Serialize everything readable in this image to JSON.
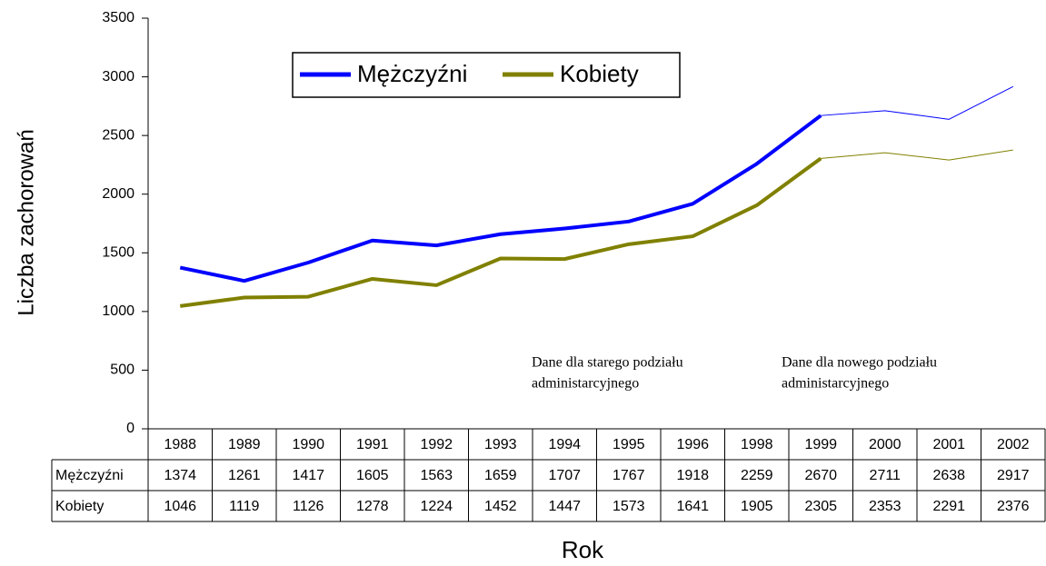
{
  "chart_data": {
    "type": "line",
    "xlabel": "Rok",
    "ylabel": "Liczba zachorowań",
    "categories": [
      "1988",
      "1989",
      "1990",
      "1991",
      "1992",
      "1993",
      "1994",
      "1995",
      "1996",
      "1998",
      "1999",
      "2000",
      "2001",
      "2002"
    ],
    "series": [
      {
        "name": "Mężczyźni",
        "color": "#0000ff",
        "values": [
          1374,
          1261,
          1417,
          1605,
          1563,
          1659,
          1707,
          1767,
          1918,
          2259,
          2670,
          2711,
          2638,
          2917
        ]
      },
      {
        "name": "Kobiety",
        "color": "#808000",
        "values": [
          1046,
          1119,
          1126,
          1278,
          1224,
          1452,
          1447,
          1573,
          1641,
          1905,
          2305,
          2353,
          2291,
          2376
        ]
      }
    ],
    "line_style_change_at": "1999",
    "ylim": [
      0,
      3500
    ],
    "yticks": [
      0,
      500,
      1000,
      1500,
      2000,
      2500,
      3000,
      3500
    ],
    "annotations": [
      {
        "lines": [
          "Dane dla starego podziału",
          "administarcyjnego"
        ]
      },
      {
        "lines": [
          "Dane dla nowego podziału",
          "administarcyjnego"
        ]
      }
    ]
  }
}
